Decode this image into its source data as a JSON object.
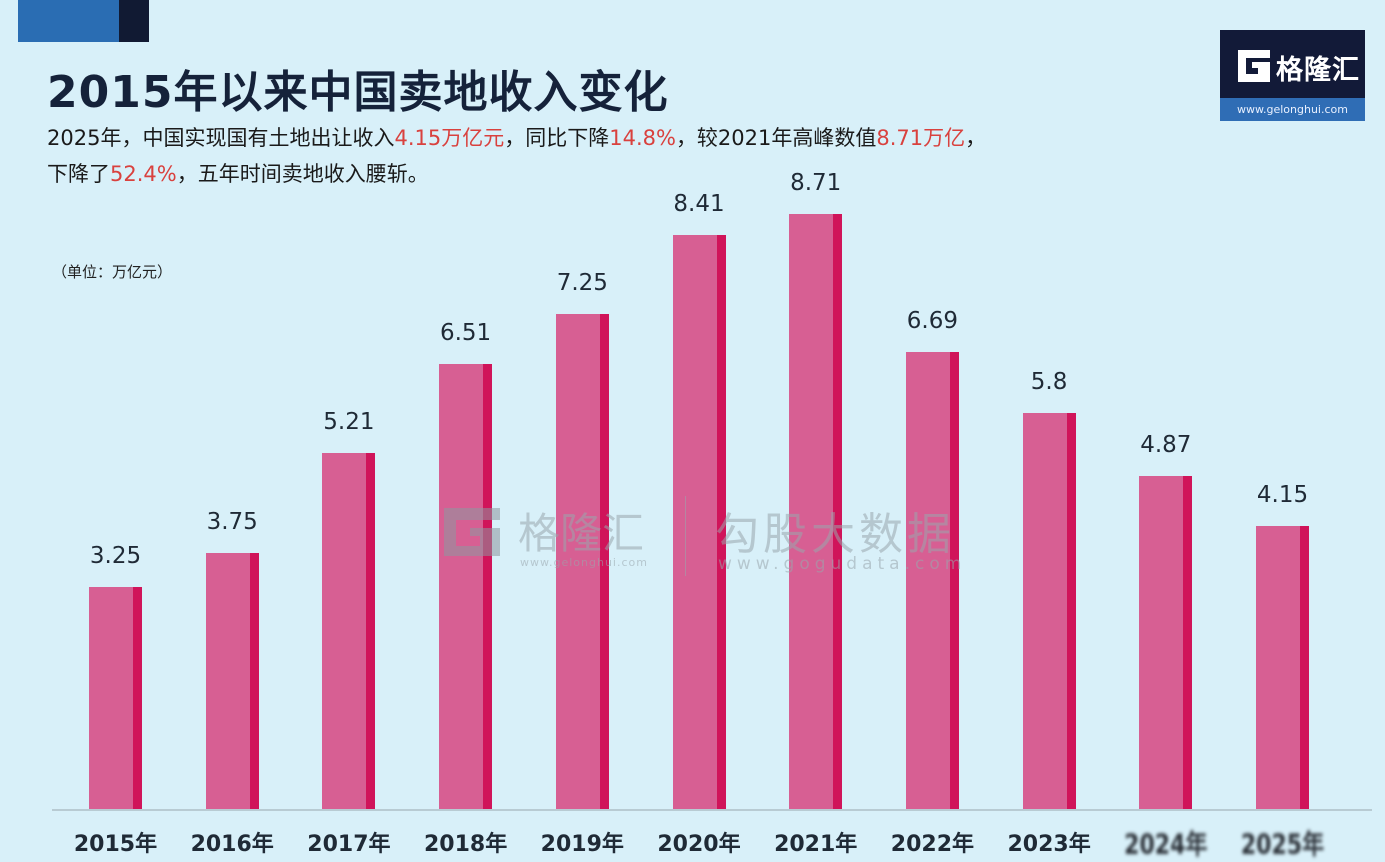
{
  "title": "2015年以来中国卖地收入变化",
  "subtitle": {
    "line1": [
      {
        "text": "2025年，中国实现国有土地出让收入",
        "highlight": false
      },
      {
        "text": "4.15万亿元",
        "highlight": true
      },
      {
        "text": "，同比下降",
        "highlight": false
      },
      {
        "text": "14.8%",
        "highlight": true
      },
      {
        "text": "，较2021年高峰数值",
        "highlight": false
      },
      {
        "text": "8.71万亿",
        "highlight": true
      },
      {
        "text": "，",
        "highlight": false
      }
    ],
    "line2": [
      {
        "text": "下降了",
        "highlight": false
      },
      {
        "text": "52.4%",
        "highlight": true
      },
      {
        "text": "，五年时间卖地收入腰斩。",
        "highlight": false
      }
    ]
  },
  "unit_label": "（单位：万亿元）",
  "logo": {
    "name": "格隆汇",
    "url": "www.gelonghui.com"
  },
  "watermark": {
    "brand1": "格隆汇",
    "url1": "www.gelonghui.com",
    "brand2": "勾股大数据",
    "url2": "www.gogudata.com"
  },
  "colors": {
    "background": "#d8f0f9",
    "bar_face": "#d75f93",
    "bar_side": "#d0145a",
    "highlight": "#d9413e",
    "title": "#15223a"
  },
  "chart_data": {
    "type": "bar",
    "title": "2015年以来中国卖地收入变化",
    "subtitle": "2025年，中国实现国有土地出让收入4.15万亿元，同比下降14.8%，较2021年高峰数值8.71万亿，下降了52.4%，五年时间卖地收入腰斩。",
    "xlabel": "",
    "ylabel": "（单位：万亿元）",
    "categories": [
      "2015年",
      "2016年",
      "2017年",
      "2018年",
      "2019年",
      "2020年",
      "2021年",
      "2022年",
      "2023年",
      "2024年",
      "2025年"
    ],
    "values": [
      3.25,
      3.75,
      5.21,
      6.51,
      7.25,
      8.41,
      8.71,
      6.69,
      5.8,
      4.87,
      4.15
    ],
    "value_labels": [
      "3.25",
      "3.75",
      "5.21",
      "6.51",
      "7.25",
      "8.41",
      "8.71",
      "6.69",
      "5.8",
      "4.87",
      "4.15"
    ],
    "ylim": [
      0,
      10
    ],
    "grid": false,
    "legend": "none",
    "data_labels": true
  }
}
